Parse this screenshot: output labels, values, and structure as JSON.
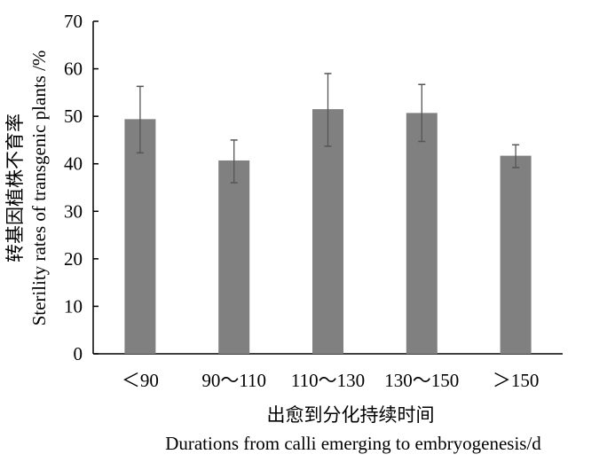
{
  "chart_data": {
    "type": "bar",
    "categories": [
      "＜90",
      "90～110",
      "110～130",
      "130～150",
      "＞150"
    ],
    "values": [
      49.4,
      40.7,
      51.5,
      50.7,
      41.7
    ],
    "error_low": [
      42.3,
      36.0,
      43.7,
      44.7,
      39.2
    ],
    "error_high": [
      56.3,
      45.0,
      59.0,
      56.7,
      44.0
    ],
    "ylabel_cn": "转基因植株不育率",
    "ylabel_en": "Sterility rates of transgenic plants /%",
    "xlabel_cn": "出愈到分化持续时间",
    "xlabel_en": "Durations from calli emerging to embryogenesis/d",
    "ylim": [
      0,
      70
    ],
    "yticks": [
      "0",
      "10",
      "20",
      "30",
      "40",
      "50",
      "60",
      "70"
    ],
    "grid": false,
    "bar_color": "#808080"
  }
}
